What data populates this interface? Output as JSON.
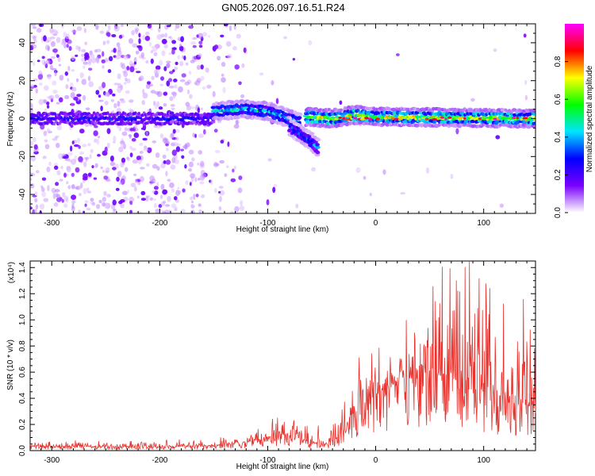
{
  "title": "GN05.2026.097.16.51.R24",
  "chart_data": [
    {
      "type": "heatmap",
      "xlabel": "Height of straight line (km)",
      "ylabel": "Frequency (Hz)",
      "xlim": [
        -320,
        148
      ],
      "ylim": [
        -50,
        50
      ],
      "xticks": [
        -300,
        -200,
        -100,
        0,
        100
      ],
      "yticks": [
        -40,
        -20,
        0,
        20,
        40
      ],
      "colorbar": {
        "label": "Normalized spectral amplitude",
        "range": [
          0,
          1
        ],
        "ticks": [
          0.0,
          0.2,
          0.4,
          0.6,
          0.8
        ],
        "tick_labels": [
          "0.0",
          "0.2",
          "0.4",
          "0.6",
          "0.8"
        ],
        "colormap": [
          "#ffffff",
          "#7a00ff",
          "#0000ff",
          "#00e5ff",
          "#00ff00",
          "#ffff00",
          "#ff0000",
          "#ff00ff"
        ]
      },
      "grid": false,
      "features": [
        {
          "segment": "noise-band",
          "x_range": [
            -320,
            -150
          ],
          "frequency": 0,
          "amplitude": 0.25
        },
        {
          "segment": "ridge-1",
          "x": [
            -150,
            -120,
            -100,
            -85,
            -70
          ],
          "frequency": [
            4,
            5,
            4,
            1,
            -2
          ],
          "amplitude": 0.45
        },
        {
          "segment": "branch",
          "x": [
            -80,
            -70,
            -60,
            -52
          ],
          "frequency": [
            -4,
            -8,
            -12,
            -16
          ],
          "amplitude": 0.35
        },
        {
          "segment": "ridge-2",
          "x": [
            -65,
            -40,
            -20,
            0,
            148
          ],
          "frequency": [
            1,
            0,
            2,
            1,
            0
          ],
          "amplitude": 0.65
        }
      ]
    },
    {
      "type": "line",
      "xlabel": "Height of straight line (km)",
      "ylabel": "SNR (10 * v/v)",
      "y_multiplier": "(x10⁴)",
      "xlim": [
        -320,
        148
      ],
      "ylim": [
        0,
        1.45
      ],
      "xticks": [
        -300,
        -200,
        -100,
        0,
        100
      ],
      "yticks": [
        0.0,
        0.2,
        0.4,
        0.6,
        0.8,
        1.0,
        1.2,
        1.4
      ],
      "ytick_labels": [
        "0.0",
        "0.2",
        "0.4",
        "0.6",
        "0.8",
        "1.0",
        "1.2",
        "1.4"
      ],
      "color": "#e8322d",
      "grid": false,
      "envelope": {
        "x": [
          -320,
          -200,
          -150,
          -120,
          -100,
          -80,
          -60,
          -45,
          -30,
          -20,
          0,
          20,
          40,
          60,
          80,
          100,
          120,
          148
        ],
        "base": [
          0.03,
          0.03,
          0.035,
          0.06,
          0.1,
          0.12,
          0.06,
          0.05,
          0.12,
          0.3,
          0.42,
          0.5,
          0.58,
          0.55,
          0.5,
          0.42,
          0.38,
          0.32
        ],
        "peak": [
          0.07,
          0.08,
          0.09,
          0.15,
          0.25,
          0.28,
          0.2,
          0.18,
          0.4,
          0.75,
          0.8,
          0.9,
          1.2,
          1.4,
          1.45,
          1.3,
          1.2,
          1.1
        ]
      }
    }
  ]
}
